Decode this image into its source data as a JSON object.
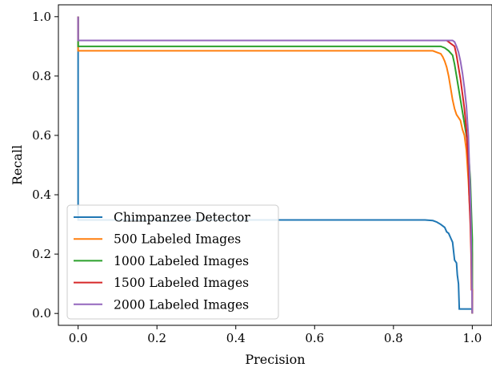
{
  "chart_data": {
    "type": "line",
    "title": "",
    "xlabel": "Precision",
    "ylabel": "Recall",
    "xlim": [
      -0.05,
      1.05
    ],
    "ylim": [
      -0.04,
      1.04
    ],
    "x_ticks": [
      "0.0",
      "0.2",
      "0.4",
      "0.6",
      "0.8",
      "1.0"
    ],
    "y_ticks": [
      "0.0",
      "0.2",
      "0.4",
      "0.6",
      "0.8",
      "1.0"
    ],
    "grid": false,
    "legend_position": "lower-left",
    "series": [
      {
        "name": "Chimpanzee Detector",
        "color": "#1f77b4",
        "points": [
          [
            0.0,
            1.0
          ],
          [
            0.0,
            0.315
          ],
          [
            0.88,
            0.315
          ],
          [
            0.9,
            0.313
          ],
          [
            0.91,
            0.308
          ],
          [
            0.92,
            0.3
          ],
          [
            0.93,
            0.29
          ],
          [
            0.935,
            0.275
          ],
          [
            0.94,
            0.27
          ],
          [
            0.945,
            0.255
          ],
          [
            0.95,
            0.24
          ],
          [
            0.955,
            0.18
          ],
          [
            0.96,
            0.17
          ],
          [
            0.962,
            0.13
          ],
          [
            0.965,
            0.1
          ],
          [
            0.967,
            0.015
          ],
          [
            1.0,
            0.015
          ],
          [
            1.0,
            0.0
          ]
        ]
      },
      {
        "name": "500 Labeled Images",
        "color": "#ff7f0e",
        "points": [
          [
            0.0,
            1.0
          ],
          [
            0.0,
            0.885
          ],
          [
            0.9,
            0.885
          ],
          [
            0.91,
            0.88
          ],
          [
            0.92,
            0.875
          ],
          [
            0.925,
            0.865
          ],
          [
            0.93,
            0.85
          ],
          [
            0.935,
            0.83
          ],
          [
            0.94,
            0.8
          ],
          [
            0.945,
            0.76
          ],
          [
            0.95,
            0.72
          ],
          [
            0.955,
            0.69
          ],
          [
            0.96,
            0.67
          ],
          [
            0.965,
            0.66
          ],
          [
            0.97,
            0.65
          ],
          [
            0.975,
            0.62
          ],
          [
            0.98,
            0.6
          ],
          [
            0.985,
            0.55
          ],
          [
            0.99,
            0.45
          ],
          [
            0.995,
            0.32
          ],
          [
            1.0,
            0.2
          ],
          [
            1.0,
            0.0
          ]
        ]
      },
      {
        "name": "1000 Labeled Images",
        "color": "#2ca02c",
        "points": [
          [
            0.0,
            1.0
          ],
          [
            0.0,
            0.9
          ],
          [
            0.92,
            0.9
          ],
          [
            0.93,
            0.895
          ],
          [
            0.94,
            0.885
          ],
          [
            0.95,
            0.87
          ],
          [
            0.955,
            0.84
          ],
          [
            0.96,
            0.8
          ],
          [
            0.965,
            0.76
          ],
          [
            0.97,
            0.72
          ],
          [
            0.975,
            0.68
          ],
          [
            0.98,
            0.64
          ],
          [
            0.985,
            0.6
          ],
          [
            0.99,
            0.55
          ],
          [
            0.995,
            0.45
          ],
          [
            1.0,
            0.25
          ],
          [
            1.0,
            0.0
          ]
        ]
      },
      {
        "name": "1500 Labeled Images",
        "color": "#d62728",
        "points": [
          [
            0.0,
            1.0
          ],
          [
            0.0,
            0.92
          ],
          [
            0.935,
            0.92
          ],
          [
            0.945,
            0.91
          ],
          [
            0.955,
            0.9
          ],
          [
            0.96,
            0.87
          ],
          [
            0.965,
            0.83
          ],
          [
            0.97,
            0.79
          ],
          [
            0.975,
            0.74
          ],
          [
            0.98,
            0.69
          ],
          [
            0.985,
            0.62
          ],
          [
            0.99,
            0.5
          ],
          [
            0.992,
            0.4
          ],
          [
            0.995,
            0.3
          ],
          [
            0.997,
            0.2
          ],
          [
            0.998,
            0.08
          ],
          [
            1.0,
            0.08
          ],
          [
            1.0,
            0.0
          ]
        ]
      },
      {
        "name": "2000 Labeled Images",
        "color": "#9467bd",
        "points": [
          [
            0.0,
            1.0
          ],
          [
            0.0,
            0.92
          ],
          [
            0.95,
            0.92
          ],
          [
            0.955,
            0.915
          ],
          [
            0.96,
            0.9
          ],
          [
            0.965,
            0.88
          ],
          [
            0.97,
            0.85
          ],
          [
            0.975,
            0.81
          ],
          [
            0.98,
            0.76
          ],
          [
            0.985,
            0.7
          ],
          [
            0.99,
            0.6
          ],
          [
            0.993,
            0.48
          ],
          [
            0.996,
            0.35
          ],
          [
            0.998,
            0.2
          ],
          [
            1.0,
            0.0
          ]
        ]
      }
    ]
  }
}
